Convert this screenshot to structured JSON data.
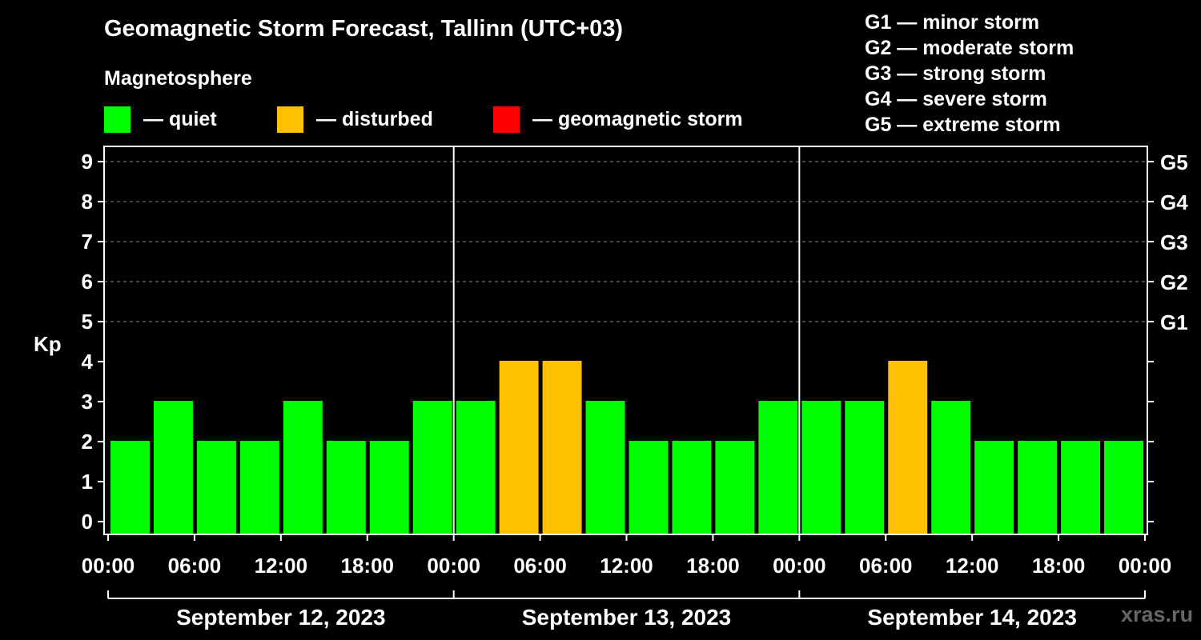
{
  "title": "Geomagnetic Storm Forecast, Tallinn (UTC+03)",
  "subtitle": "Magnetosphere",
  "legend": [
    {
      "label": "— quiet",
      "color": "#00ff00"
    },
    {
      "label": "— disturbed",
      "color": "#ffc000"
    },
    {
      "label": "— geomagnetic storm",
      "color": "#ff0000"
    }
  ],
  "storm_levels": [
    {
      "text": "G1 — minor storm"
    },
    {
      "text": "G2 — moderate storm"
    },
    {
      "text": "G3 — strong storm"
    },
    {
      "text": "G4 — severe storm"
    },
    {
      "text": "G5 — extreme storm"
    }
  ],
  "watermark": "xras.ru",
  "chart_data": {
    "type": "bar",
    "ylabel": "Kp",
    "ylim": [
      0,
      9
    ],
    "y_ticks": [
      0,
      1,
      2,
      3,
      4,
      5,
      6,
      7,
      8,
      9
    ],
    "right_axis_labels": [
      {
        "kp": 5,
        "label": "G1"
      },
      {
        "kp": 6,
        "label": "G2"
      },
      {
        "kp": 7,
        "label": "G3"
      },
      {
        "kp": 8,
        "label": "G4"
      },
      {
        "kp": 9,
        "label": "G5"
      }
    ],
    "x_tick_labels": [
      "00:00",
      "06:00",
      "12:00",
      "18:00",
      "00:00",
      "06:00",
      "12:00",
      "18:00",
      "00:00",
      "06:00",
      "12:00",
      "18:00",
      "00:00"
    ],
    "days": [
      "September 12, 2023",
      "September 13, 2023",
      "September 14, 2023"
    ],
    "grid": "horizontal dashed at Kp 5-9",
    "values": [
      2,
      3,
      2,
      2,
      3,
      2,
      2,
      3,
      3,
      4,
      4,
      3,
      2,
      2,
      2,
      3,
      3,
      3,
      4,
      3,
      2,
      2,
      2,
      2
    ],
    "status": [
      "quiet",
      "quiet",
      "quiet",
      "quiet",
      "quiet",
      "quiet",
      "quiet",
      "quiet",
      "quiet",
      "disturbed",
      "disturbed",
      "quiet",
      "quiet",
      "quiet",
      "quiet",
      "quiet",
      "quiet",
      "quiet",
      "disturbed",
      "quiet",
      "quiet",
      "quiet",
      "quiet",
      "quiet"
    ],
    "status_colors": {
      "quiet": "#00ff00",
      "disturbed": "#ffc000",
      "storm": "#ff0000"
    }
  }
}
